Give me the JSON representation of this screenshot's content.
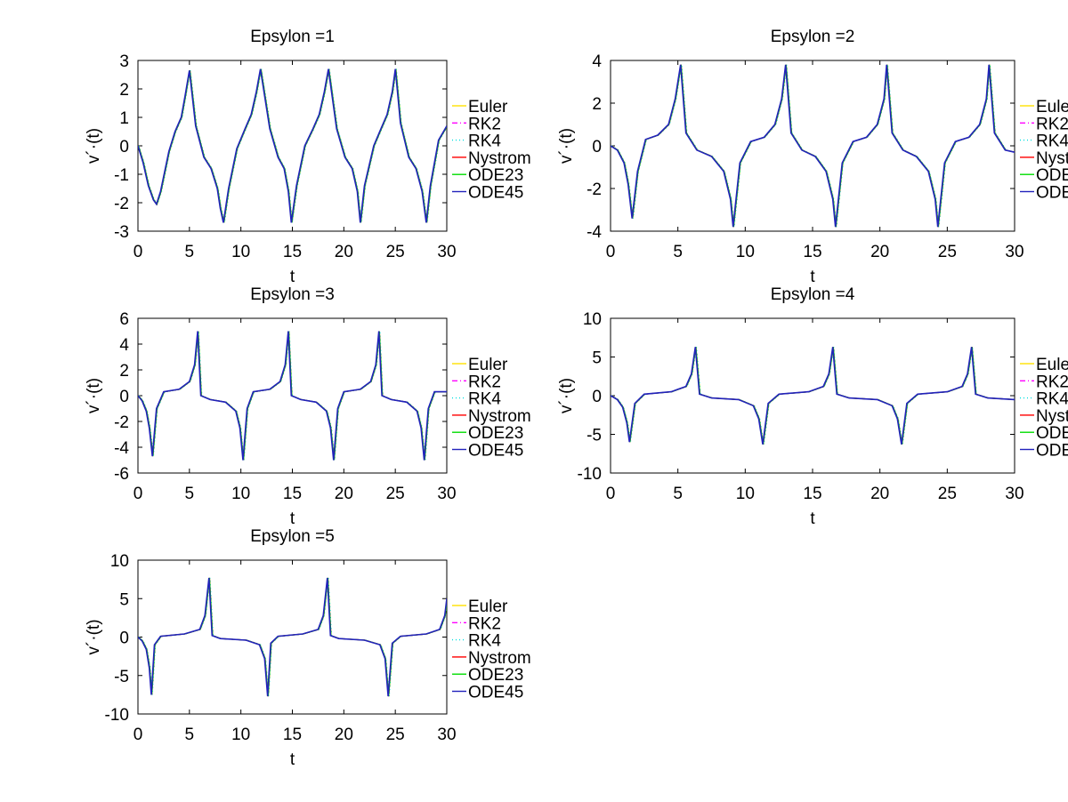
{
  "figure": {
    "shared": {
      "xlabel": "t",
      "ylabel": "v´·(t)",
      "legend": [
        {
          "name": "Euler",
          "color": "#ffe000",
          "dash": "solid"
        },
        {
          "name": "RK2",
          "color": "#ff00ff",
          "dash": "dashdot"
        },
        {
          "name": "RK4",
          "color": "#00e0e0",
          "dash": "dot"
        },
        {
          "name": "Nystrom",
          "color": "#ff0000",
          "dash": "solid"
        },
        {
          "name": "ODE23",
          "color": "#00dd00",
          "dash": "solid"
        },
        {
          "name": "ODE45",
          "color": "#2222bb",
          "dash": "solid"
        }
      ]
    }
  },
  "chart_data": [
    {
      "type": "line",
      "title": "Epsylon =1",
      "xlabel": "t",
      "ylabel": "v´·(t)",
      "xlim": [
        0,
        30
      ],
      "ylim": [
        -3,
        3
      ],
      "xticks": [
        0,
        5,
        10,
        15,
        20,
        25,
        30
      ],
      "yticks": [
        -3,
        -2,
        -1,
        0,
        1,
        2,
        3
      ],
      "x": [
        0,
        0.5,
        1.0,
        1.5,
        1.8,
        2.2,
        3.0,
        3.6,
        4.2,
        4.6,
        5.0,
        5.6,
        6.4,
        7.1,
        7.7,
        8.0,
        8.3,
        8.8,
        9.6,
        10.4,
        11.0,
        11.5,
        11.9,
        12.8,
        13.6,
        14.2,
        14.6,
        14.9,
        15.4,
        16.2,
        17.0,
        17.6,
        18.1,
        18.5,
        19.3,
        20.1,
        20.8,
        21.3,
        21.6,
        22.0,
        22.9,
        23.6,
        24.2,
        24.7,
        25.0,
        25.5,
        26.3,
        27.0,
        27.6,
        28.0,
        28.4,
        29.2,
        30.0
      ],
      "series": [
        {
          "name": "ODE45",
          "values": [
            0,
            -0.6,
            -1.4,
            -1.9,
            -2.05,
            -1.6,
            -0.2,
            0.5,
            1.0,
            1.8,
            2.65,
            0.7,
            -0.4,
            -0.8,
            -1.5,
            -2.2,
            -2.7,
            -1.5,
            -0.1,
            0.6,
            1.1,
            1.9,
            2.7,
            0.6,
            -0.4,
            -0.8,
            -1.6,
            -2.7,
            -1.4,
            0.0,
            0.6,
            1.1,
            1.9,
            2.7,
            0.6,
            -0.4,
            -0.8,
            -1.6,
            -2.7,
            -1.4,
            0.0,
            0.6,
            1.1,
            1.9,
            2.7,
            0.8,
            -0.4,
            -0.8,
            -1.6,
            -2.7,
            -1.4,
            0.2,
            0.7
          ]
        }
      ]
    },
    {
      "type": "line",
      "title": "Epsylon =2",
      "xlabel": "t",
      "ylabel": "v´·(t)",
      "xlim": [
        0,
        30
      ],
      "ylim": [
        -4,
        4
      ],
      "xticks": [
        0,
        5,
        10,
        15,
        20,
        25,
        30
      ],
      "yticks": [
        -4,
        -2,
        0,
        2,
        4
      ],
      "x": [
        0,
        0.5,
        1.0,
        1.3,
        1.6,
        2.0,
        2.6,
        3.5,
        4.3,
        4.8,
        5.2,
        5.6,
        6.4,
        7.5,
        8.4,
        8.9,
        9.1,
        9.6,
        10.4,
        11.4,
        12.2,
        12.7,
        13.0,
        13.4,
        14.2,
        15.2,
        16.0,
        16.5,
        16.7,
        17.2,
        18.0,
        19.0,
        19.8,
        20.3,
        20.5,
        20.9,
        21.7,
        22.7,
        23.6,
        24.1,
        24.3,
        24.8,
        25.6,
        26.6,
        27.4,
        27.9,
        28.1,
        28.5,
        29.3,
        30.0
      ],
      "series": [
        {
          "name": "ODE45",
          "values": [
            0,
            -0.2,
            -0.8,
            -1.8,
            -3.4,
            -1.2,
            0.3,
            0.5,
            1.0,
            2.2,
            3.8,
            0.6,
            -0.2,
            -0.5,
            -1.2,
            -2.5,
            -3.8,
            -0.8,
            0.2,
            0.4,
            1.0,
            2.2,
            3.8,
            0.6,
            -0.2,
            -0.5,
            -1.2,
            -2.5,
            -3.8,
            -0.8,
            0.2,
            0.4,
            1.0,
            2.2,
            3.8,
            0.6,
            -0.2,
            -0.5,
            -1.2,
            -2.5,
            -3.8,
            -0.8,
            0.2,
            0.4,
            1.0,
            2.2,
            3.8,
            0.6,
            -0.2,
            -0.3
          ]
        }
      ]
    },
    {
      "type": "line",
      "title": "Epsylon =3",
      "xlabel": "t",
      "ylabel": "v´·(t)",
      "xlim": [
        0,
        30
      ],
      "ylim": [
        -6,
        6
      ],
      "xticks": [
        0,
        5,
        10,
        15,
        20,
        25,
        30
      ],
      "yticks": [
        -6,
        -4,
        -2,
        0,
        2,
        4,
        6
      ],
      "x": [
        0,
        0.4,
        0.8,
        1.1,
        1.4,
        1.8,
        2.5,
        4.0,
        5.0,
        5.5,
        5.8,
        6.1,
        7.0,
        8.5,
        9.5,
        9.9,
        10.2,
        10.6,
        11.2,
        12.8,
        13.8,
        14.3,
        14.6,
        14.9,
        15.8,
        17.3,
        18.3,
        18.7,
        19.0,
        19.4,
        20.0,
        21.6,
        22.6,
        23.1,
        23.4,
        23.7,
        24.6,
        26.1,
        27.1,
        27.5,
        27.8,
        28.2,
        28.8,
        30.0
      ],
      "series": [
        {
          "name": "ODE45",
          "values": [
            0,
            -0.4,
            -1.2,
            -2.5,
            -4.7,
            -1.0,
            0.3,
            0.5,
            1.1,
            2.4,
            5.0,
            0.0,
            -0.3,
            -0.5,
            -1.2,
            -2.5,
            -5.0,
            -1.0,
            0.3,
            0.5,
            1.1,
            2.4,
            5.0,
            0.0,
            -0.3,
            -0.5,
            -1.2,
            -2.5,
            -5.0,
            -1.0,
            0.3,
            0.5,
            1.1,
            2.4,
            5.0,
            0.0,
            -0.3,
            -0.5,
            -1.2,
            -2.5,
            -5.0,
            -1.0,
            0.3,
            0.3
          ]
        }
      ]
    },
    {
      "type": "line",
      "title": "Epsylon =4",
      "xlabel": "t",
      "ylabel": "v´·(t)",
      "xlim": [
        0,
        30
      ],
      "ylim": [
        -10,
        10
      ],
      "xticks": [
        0,
        5,
        10,
        15,
        20,
        25,
        30
      ],
      "yticks": [
        -10,
        -5,
        0,
        5,
        10
      ],
      "x": [
        0,
        0.5,
        0.9,
        1.2,
        1.4,
        1.8,
        2.5,
        4.5,
        5.6,
        6.0,
        6.3,
        6.6,
        7.5,
        9.5,
        10.6,
        11.0,
        11.3,
        11.7,
        12.5,
        14.7,
        15.8,
        16.2,
        16.5,
        16.8,
        17.7,
        19.8,
        20.9,
        21.3,
        21.6,
        22.0,
        22.8,
        25.0,
        26.1,
        26.5,
        26.8,
        27.1,
        28.0,
        30.0
      ],
      "series": [
        {
          "name": "ODE45",
          "values": [
            0,
            -0.5,
            -1.5,
            -3.5,
            -6.0,
            -1.0,
            0.2,
            0.5,
            1.2,
            2.8,
            6.3,
            0.2,
            -0.3,
            -0.5,
            -1.3,
            -3.0,
            -6.3,
            -1.0,
            0.2,
            0.5,
            1.2,
            2.8,
            6.3,
            0.2,
            -0.3,
            -0.5,
            -1.3,
            -3.0,
            -6.3,
            -1.0,
            0.2,
            0.5,
            1.2,
            2.8,
            6.3,
            0.2,
            -0.3,
            -0.5
          ]
        }
      ]
    },
    {
      "type": "line",
      "title": "Epsylon =5",
      "xlabel": "t",
      "ylabel": "v´·(t)",
      "xlim": [
        0,
        30
      ],
      "ylim": [
        -10,
        10
      ],
      "xticks": [
        0,
        5,
        10,
        15,
        20,
        25,
        30
      ],
      "yticks": [
        -10,
        -5,
        0,
        5,
        10
      ],
      "x": [
        0,
        0.4,
        0.8,
        1.1,
        1.3,
        1.6,
        2.2,
        4.5,
        6.0,
        6.5,
        6.9,
        7.2,
        8.0,
        10.5,
        11.8,
        12.3,
        12.6,
        12.9,
        13.6,
        16.0,
        17.5,
        18.0,
        18.4,
        18.7,
        19.5,
        22.0,
        23.5,
        24.0,
        24.3,
        24.7,
        25.5,
        28.0,
        29.3,
        29.8,
        30.0
      ],
      "series": [
        {
          "name": "ODE45",
          "values": [
            0,
            -0.5,
            -1.6,
            -4.0,
            -7.5,
            -1.0,
            0.1,
            0.4,
            1.0,
            2.8,
            7.7,
            0.2,
            -0.2,
            -0.4,
            -1.0,
            -2.8,
            -7.7,
            -0.8,
            0.1,
            0.4,
            1.0,
            2.8,
            7.7,
            0.2,
            -0.2,
            -0.4,
            -1.0,
            -2.8,
            -7.7,
            -0.8,
            0.1,
            0.4,
            1.0,
            2.8,
            5.0
          ]
        }
      ]
    }
  ]
}
